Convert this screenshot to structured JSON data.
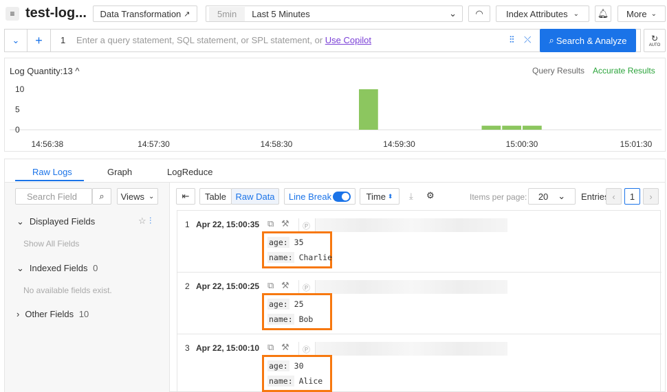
{
  "header": {
    "logstore_name": "test-log...",
    "data_transformation": "Data Transformation",
    "time_badge": "5min",
    "time_range": "Last 5  Minutes",
    "index_attributes": "Index Attributes",
    "more": "More"
  },
  "query": {
    "line_number": "1",
    "placeholder": "Enter a query statement, SQL statement, or SPL statement, or ",
    "copilot_link": "Use Copilot",
    "search_button": "Search & Analyze",
    "auto_label": "AUTO"
  },
  "histogram": {
    "log_quantity": "Log Quantity:13",
    "query_results": "Query Results",
    "accurate_results": "Accurate Results"
  },
  "chart_data": {
    "type": "bar",
    "x_ticks": [
      "14:56:38",
      "14:57:30",
      "14:58:30",
      "14:59:30",
      "15:00:30",
      "15:01:30"
    ],
    "y_ticks": [
      "10",
      "5",
      "0"
    ],
    "ylim": [
      0,
      10
    ],
    "bars": [
      {
        "start": "14:59:10",
        "count": 10
      },
      {
        "start": "15:00:10",
        "count": 1
      },
      {
        "start": "15:00:20",
        "count": 1
      },
      {
        "start": "15:00:30",
        "count": 1
      }
    ],
    "bar_color": "#8cc65f"
  },
  "tabs": [
    "Raw Logs",
    "Graph",
    "LogReduce"
  ],
  "sidebar": {
    "search_placeholder": "Search Field",
    "views": "Views",
    "displayed_fields": "Displayed Fields",
    "show_all": "Show All Fields",
    "indexed_fields": "Indexed Fields",
    "indexed_count": "0",
    "no_fields": "No available fields exist.",
    "other_fields": "Other Fields",
    "other_count": "10"
  },
  "toolbar": {
    "table": "Table",
    "raw_data": "Raw Data",
    "line_break": "Line Break",
    "time": "Time",
    "items_per_page_label": "Items per page:",
    "items_per_page": "20",
    "entries": "Entries",
    "page": "1"
  },
  "logs": [
    {
      "index": "1",
      "time": "Apr 22, 15:00:35",
      "age": "35",
      "name": "Charlie"
    },
    {
      "index": "2",
      "time": "Apr 22, 15:00:25",
      "age": "25",
      "name": "Bob"
    },
    {
      "index": "3",
      "time": "Apr 22, 15:00:10",
      "age": "30",
      "name": "Alice"
    }
  ],
  "field_keys": {
    "age": "age:",
    "name": "name:"
  }
}
